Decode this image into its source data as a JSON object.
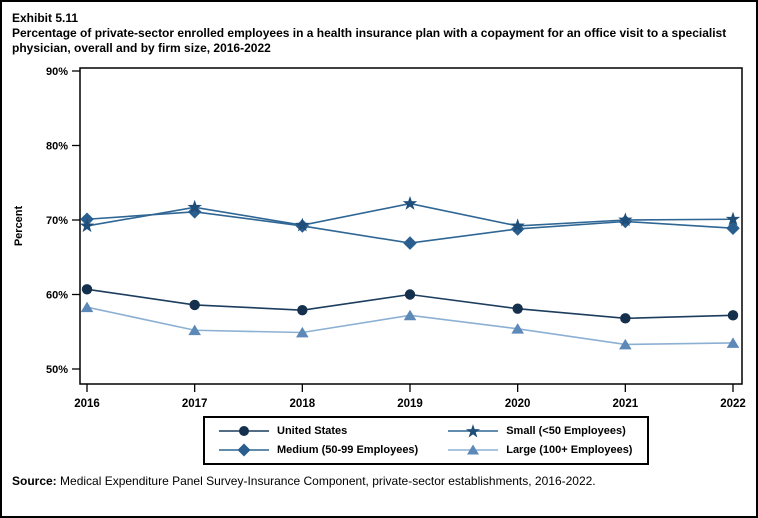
{
  "title": {
    "exhibit": "Exhibit 5.11",
    "main": "Percentage of private-sector enrolled employees in a health insurance plan with a copayment for an office visit to a specialist physician, overall and by firm size, 2016-2022"
  },
  "source": {
    "label": "Source:",
    "text": " Medical Expenditure Panel Survey-Insurance Component, private-sector establishments, 2016-2022."
  },
  "chart_data": {
    "type": "line",
    "x": [
      2016,
      2017,
      2018,
      2019,
      2020,
      2021,
      2022
    ],
    "x_labels": [
      "2016",
      "2017",
      "2018",
      "2019",
      "2020",
      "2021",
      "2022"
    ],
    "ylabel": "Percent",
    "ylim": [
      50,
      90
    ],
    "yticks": [
      50,
      60,
      70,
      80,
      90
    ],
    "ytick_labels": [
      "50%",
      "60%",
      "70%",
      "80%",
      "90%"
    ],
    "grid": false,
    "legend_position": "bottom",
    "axis_color": "#000000",
    "series": [
      {
        "name": "United States",
        "marker": "circle",
        "marker_color": "#14304d",
        "line_color": "#1c3d5e",
        "values": [
          60.7,
          58.6,
          57.9,
          60.0,
          58.1,
          56.8,
          57.2
        ]
      },
      {
        "name": "Small (<50 Employees)",
        "marker": "star",
        "marker_color": "#1f4e79",
        "line_color": "#2f6694",
        "values": [
          69.2,
          71.7,
          69.3,
          72.2,
          69.2,
          70.0,
          70.1
        ]
      },
      {
        "name": "Medium (50-99 Employees)",
        "marker": "diamond",
        "marker_color": "#2a5e8e",
        "line_color": "#2f6694",
        "values": [
          70.1,
          71.1,
          69.2,
          66.9,
          68.8,
          69.8,
          68.9
        ]
      },
      {
        "name": "Large (100+ Employees)",
        "marker": "triangle",
        "marker_color": "#5d89b8",
        "line_color": "#8cb0d3",
        "values": [
          58.3,
          55.2,
          54.9,
          57.2,
          55.4,
          53.3,
          53.5
        ]
      }
    ]
  }
}
